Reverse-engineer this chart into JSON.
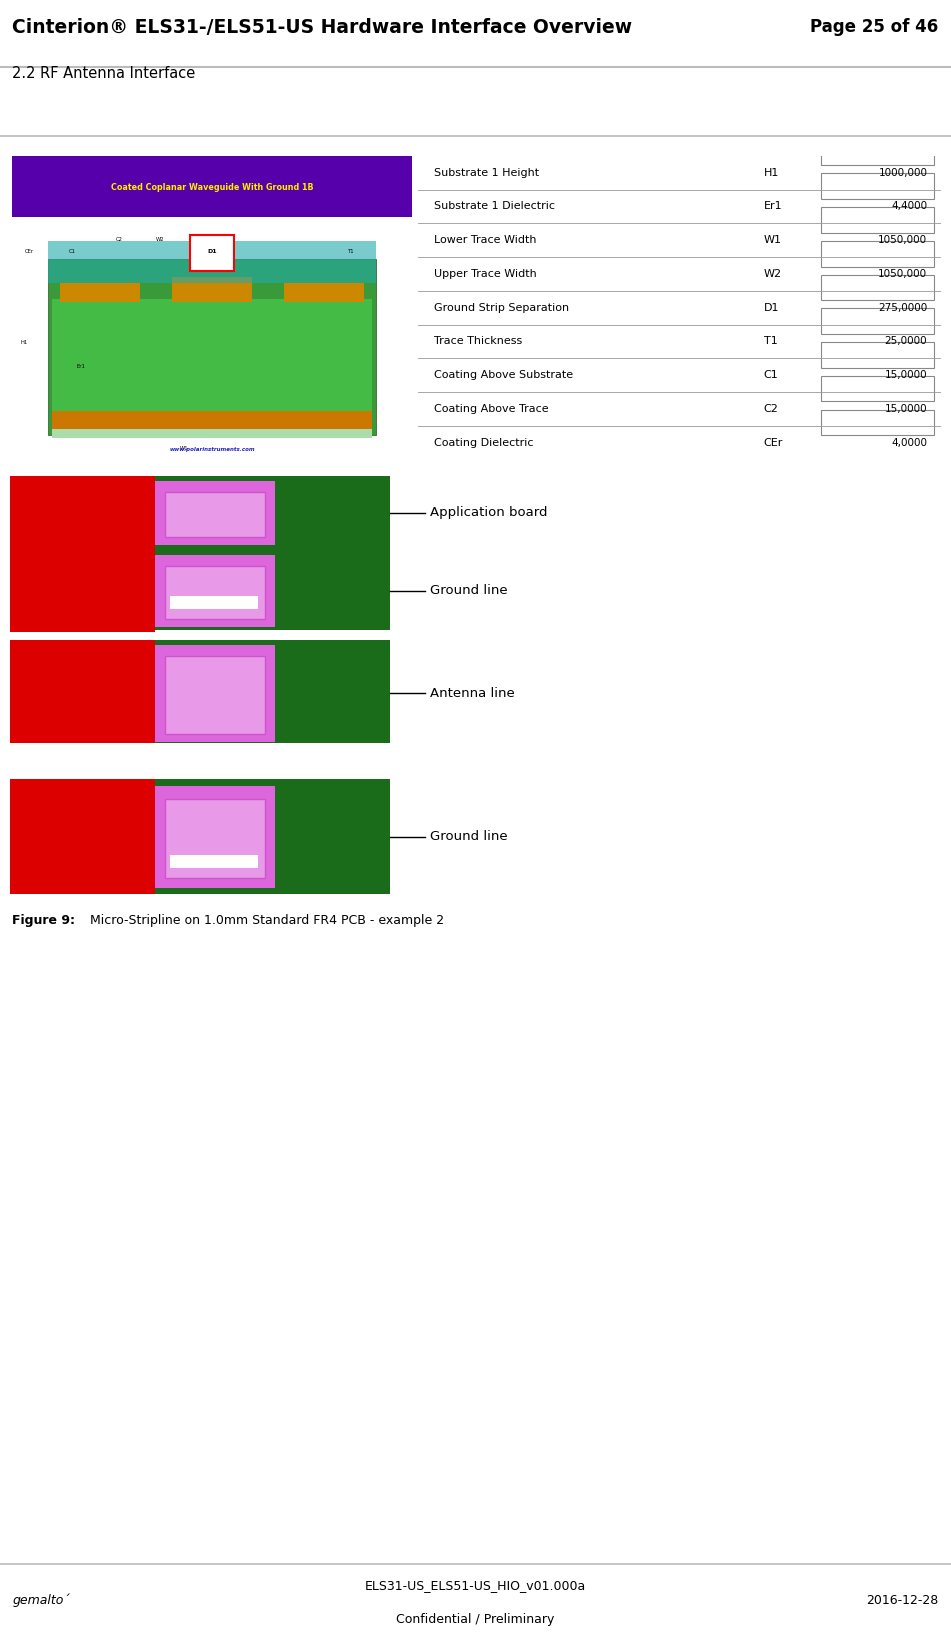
{
  "title": "Cinterion® ELS31-/ELS51-US Hardware Interface Overview",
  "page": "Page 25 of 46",
  "section": "2.2 RF Antenna Interface",
  "footer_left": "gemalto´",
  "footer_center_line1": "ELS31-US_ELS51-US_HIO_v01.000a",
  "footer_center_line2": "Confidential / Preliminary",
  "footer_right": "2016-12-28",
  "figure_caption_bold": "Figure 9:",
  "figure_caption_normal": "  Micro-Stripline on 1.0mm Standard FR4 PCB - example 2",
  "table_rows": [
    {
      "label": "Substrate 1 Height",
      "symbol": "H1",
      "value": "1000,000"
    },
    {
      "label": "Substrate 1 Dielectric",
      "symbol": "Er1",
      "value": "4,4000"
    },
    {
      "label": "Lower Trace Width",
      "symbol": "W1",
      "value": "1050,000"
    },
    {
      "label": "Upper Trace Width",
      "symbol": "W2",
      "value": "1050,000"
    },
    {
      "label": "Ground Strip Separation",
      "symbol": "D1",
      "value": "275,0000"
    },
    {
      "label": "Trace Thickness",
      "symbol": "T1",
      "value": "25,0000"
    },
    {
      "label": "Coating Above Substrate",
      "symbol": "C1",
      "value": "15,0000"
    },
    {
      "label": "Coating Above Trace",
      "symbol": "C2",
      "value": "15,0000"
    },
    {
      "label": "Coating Dielectric",
      "symbol": "CEr",
      "value": "4,0000"
    }
  ],
  "bg_color": "#ffffff",
  "header_line_color": "#bbbbbb",
  "footer_line_color": "#bbbbbb",
  "table_bg": "#d0d0d0",
  "table_border": "#999999",
  "value_box_bg": "#ffffff",
  "value_box_border": "#888888",
  "red_color": "#dd0000",
  "green_color": "#1a6b1a",
  "magenta_color": "#dd66dd",
  "white_color": "#ffffff",
  "pcb_layers": [
    {
      "label": "Application board",
      "has_inner_box": true,
      "has_gap_below": false
    },
    {
      "label": "Ground line",
      "has_inner_box": true,
      "has_gap_below": false
    },
    {
      "label": "Antenna line",
      "has_inner_box": true,
      "has_gap_below": true
    },
    {
      "label": "Ground line",
      "has_inner_box": true,
      "has_gap_below": false
    }
  ],
  "annotations": [
    {
      "text": "Application board",
      "line_to": [
        0.4,
        0.845
      ]
    },
    {
      "text": "Ground line",
      "line_to": [
        0.4,
        0.65
      ]
    },
    {
      "text": "Antenna line",
      "line_to": [
        0.4,
        0.445
      ]
    },
    {
      "text": "Ground line",
      "line_to": [
        0.4,
        0.175
      ]
    }
  ]
}
